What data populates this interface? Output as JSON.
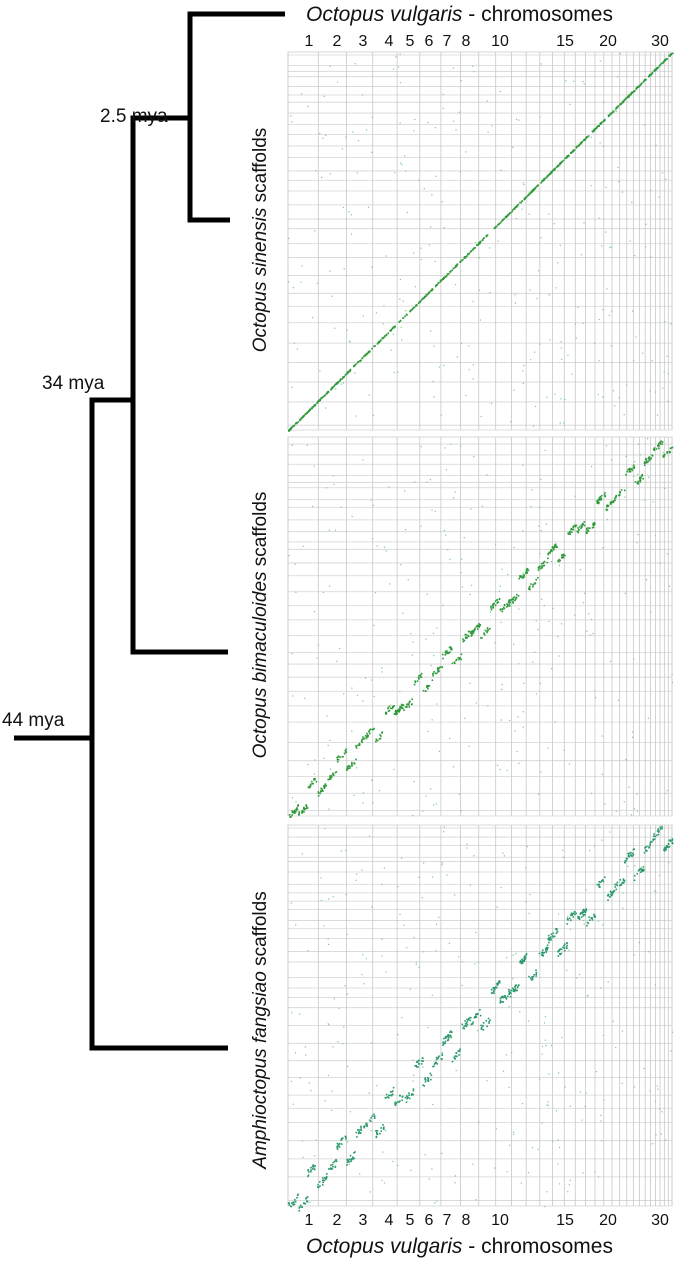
{
  "top_axis": {
    "species": "Octopus vulgaris",
    "suffix": "- chromosomes",
    "ticks": [
      "1",
      "2",
      "3",
      "4",
      "5",
      "6",
      "7",
      "8",
      "10",
      "15",
      "20",
      "30"
    ]
  },
  "bottom_axis": {
    "species": "Octopus vulgaris",
    "suffix": "- chromosomes",
    "ticks": [
      "1",
      "2",
      "3",
      "4",
      "5",
      "6",
      "7",
      "8",
      "10",
      "15",
      "20",
      "30"
    ]
  },
  "tree": {
    "nodes": [
      "2.5 mya",
      "34 mya",
      "44 mya"
    ]
  },
  "panels": [
    {
      "species": "Octopus sinensis",
      "suffix": "scaffolds"
    },
    {
      "species": "Octopus bimaculoides",
      "suffix": "scaffolds"
    },
    {
      "species": "Amphioctopus fangsiao",
      "suffix": "scaffolds"
    }
  ]
}
